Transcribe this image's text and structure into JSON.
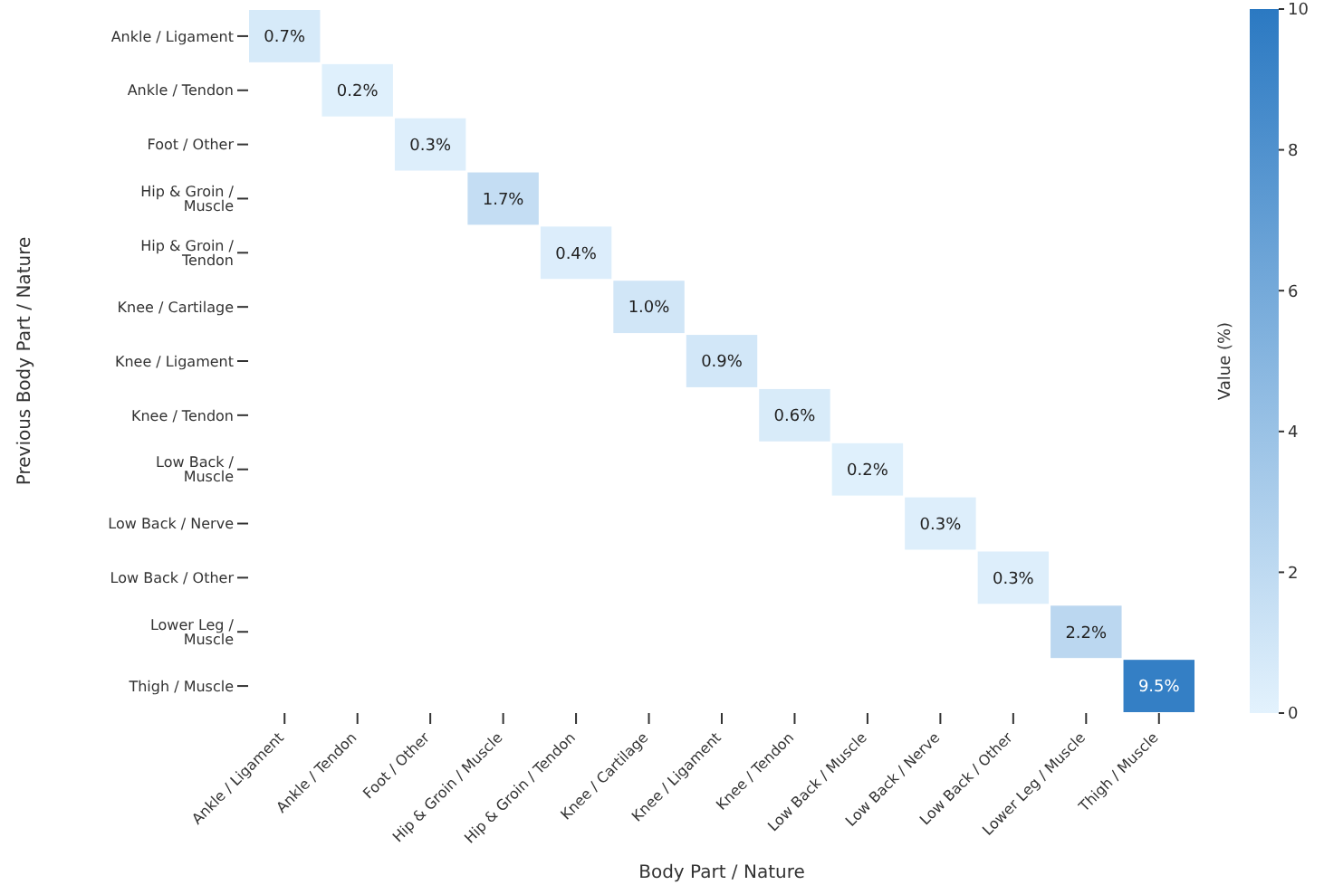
{
  "chart_data": {
    "type": "heatmap",
    "xlabel": "Body Part / Nature",
    "ylabel": "Previous Body Part / Nature",
    "clabel": "Value (%)",
    "categories": [
      "Ankle / Ligament",
      "Ankle / Tendon",
      "Foot / Other",
      "Hip & Groin / Muscle",
      "Hip & Groin / Tendon",
      "Knee / Cartilage",
      "Knee / Ligament",
      "Knee / Tendon",
      "Low Back / Muscle",
      "Low Back / Nerve",
      "Low Back / Other",
      "Lower Leg / Muscle",
      "Thigh / Muscle"
    ],
    "y_categories": [
      "Ankle / Ligament",
      "Ankle / Tendon",
      "Foot / Other",
      "Hip & Groin / Muscle",
      "Hip & Groin / Tendon",
      "Knee / Cartilage",
      "Knee / Ligament",
      "Knee / Tendon",
      "Low Back / Muscle",
      "Low Back / Nerve",
      "Low Back / Other",
      "Lower Leg / Muscle",
      "Thigh / Muscle"
    ],
    "cells": [
      [
        0.7,
        null,
        null,
        null,
        null,
        null,
        null,
        null,
        null,
        null,
        null,
        null,
        null
      ],
      [
        null,
        0.2,
        null,
        null,
        null,
        null,
        null,
        null,
        null,
        null,
        null,
        null,
        null
      ],
      [
        null,
        null,
        0.3,
        null,
        null,
        null,
        null,
        null,
        null,
        null,
        null,
        null,
        null
      ],
      [
        null,
        null,
        null,
        1.7,
        null,
        null,
        null,
        null,
        null,
        null,
        null,
        null,
        null
      ],
      [
        null,
        null,
        null,
        null,
        0.4,
        null,
        null,
        null,
        null,
        null,
        null,
        null,
        null
      ],
      [
        null,
        null,
        null,
        null,
        null,
        1.0,
        null,
        null,
        null,
        null,
        null,
        null,
        null
      ],
      [
        null,
        null,
        null,
        null,
        null,
        null,
        0.9,
        null,
        null,
        null,
        null,
        null,
        null
      ],
      [
        null,
        null,
        null,
        null,
        null,
        null,
        null,
        0.6,
        null,
        null,
        null,
        null,
        null
      ],
      [
        null,
        null,
        null,
        null,
        null,
        null,
        null,
        null,
        0.2,
        null,
        null,
        null,
        null
      ],
      [
        null,
        null,
        null,
        null,
        null,
        null,
        null,
        null,
        null,
        0.3,
        null,
        null,
        null
      ],
      [
        null,
        null,
        null,
        null,
        null,
        null,
        null,
        null,
        null,
        null,
        0.3,
        null,
        null
      ],
      [
        null,
        null,
        null,
        null,
        null,
        null,
        null,
        null,
        null,
        null,
        null,
        2.2,
        null
      ],
      [
        null,
        null,
        null,
        null,
        null,
        null,
        null,
        null,
        null,
        null,
        null,
        null,
        9.5
      ]
    ],
    "cell_labels": [
      [
        "0.7%",
        null,
        null,
        null,
        null,
        null,
        null,
        null,
        null,
        null,
        null,
        null,
        null
      ],
      [
        null,
        "0.2%",
        null,
        null,
        null,
        null,
        null,
        null,
        null,
        null,
        null,
        null,
        null
      ],
      [
        null,
        null,
        "0.3%",
        null,
        null,
        null,
        null,
        null,
        null,
        null,
        null,
        null,
        null
      ],
      [
        null,
        null,
        null,
        "1.7%",
        null,
        null,
        null,
        null,
        null,
        null,
        null,
        null,
        null
      ],
      [
        null,
        null,
        null,
        null,
        "0.4%",
        null,
        null,
        null,
        null,
        null,
        null,
        null,
        null
      ],
      [
        null,
        null,
        null,
        null,
        null,
        "1.0%",
        null,
        null,
        null,
        null,
        null,
        null,
        null
      ],
      [
        null,
        null,
        null,
        null,
        null,
        null,
        "0.9%",
        null,
        null,
        null,
        null,
        null,
        null
      ],
      [
        null,
        null,
        null,
        null,
        null,
        null,
        null,
        "0.6%",
        null,
        null,
        null,
        null,
        null
      ],
      [
        null,
        null,
        null,
        null,
        null,
        null,
        null,
        null,
        "0.2%",
        null,
        null,
        null,
        null
      ],
      [
        null,
        null,
        null,
        null,
        null,
        null,
        null,
        null,
        null,
        "0.3%",
        null,
        null,
        null
      ],
      [
        null,
        null,
        null,
        null,
        null,
        null,
        null,
        null,
        null,
        null,
        "0.3%",
        null,
        null
      ],
      [
        null,
        null,
        null,
        null,
        null,
        null,
        null,
        null,
        null,
        null,
        null,
        "2.2%",
        null
      ],
      [
        null,
        null,
        null,
        null,
        null,
        null,
        null,
        null,
        null,
        null,
        null,
        null,
        "9.5%"
      ]
    ],
    "clim": [
      0,
      10
    ],
    "cticks": [
      0,
      2,
      4,
      6,
      8,
      10
    ]
  }
}
